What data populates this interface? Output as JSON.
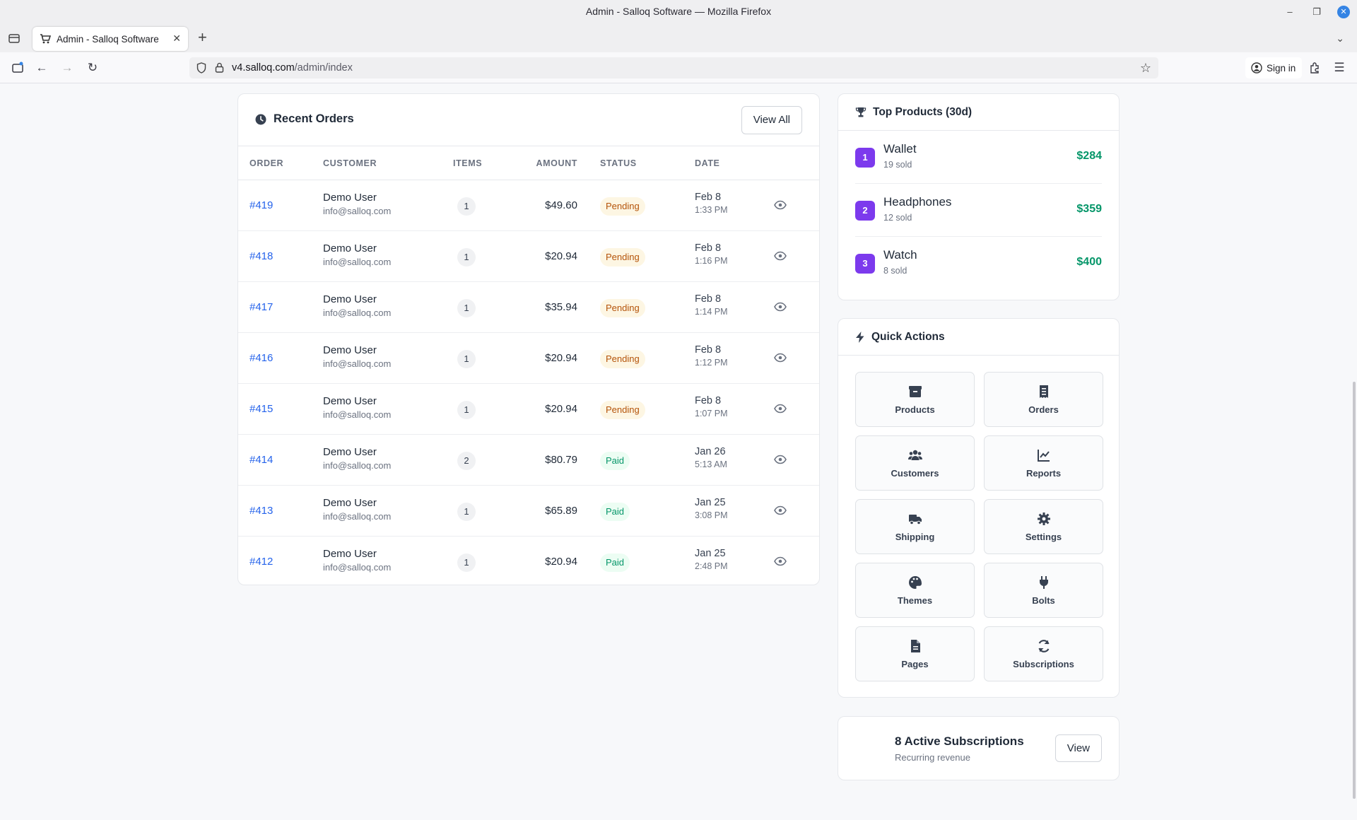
{
  "window": {
    "title": "Admin - Salloq Software — Mozilla Firefox"
  },
  "browser": {
    "tab_title": "Admin - Salloq Software",
    "url_domain": "v4.salloq.com",
    "url_path": "/admin/index",
    "sign_in": "Sign in"
  },
  "recent_orders": {
    "title": "Recent Orders",
    "view_all": "View All",
    "columns": {
      "order": "ORDER",
      "customer": "CUSTOMER",
      "items": "ITEMS",
      "amount": "AMOUNT",
      "status": "STATUS",
      "date": "DATE"
    },
    "rows": [
      {
        "id": "#419",
        "name": "Demo User",
        "email": "info@salloq.com",
        "items": "1",
        "amount": "$49.60",
        "status": "Pending",
        "date": "Feb 8",
        "time": "1:33 PM"
      },
      {
        "id": "#418",
        "name": "Demo User",
        "email": "info@salloq.com",
        "items": "1",
        "amount": "$20.94",
        "status": "Pending",
        "date": "Feb 8",
        "time": "1:16 PM"
      },
      {
        "id": "#417",
        "name": "Demo User",
        "email": "info@salloq.com",
        "items": "1",
        "amount": "$35.94",
        "status": "Pending",
        "date": "Feb 8",
        "time": "1:14 PM"
      },
      {
        "id": "#416",
        "name": "Demo User",
        "email": "info@salloq.com",
        "items": "1",
        "amount": "$20.94",
        "status": "Pending",
        "date": "Feb 8",
        "time": "1:12 PM"
      },
      {
        "id": "#415",
        "name": "Demo User",
        "email": "info@salloq.com",
        "items": "1",
        "amount": "$20.94",
        "status": "Pending",
        "date": "Feb 8",
        "time": "1:07 PM"
      },
      {
        "id": "#414",
        "name": "Demo User",
        "email": "info@salloq.com",
        "items": "2",
        "amount": "$80.79",
        "status": "Paid",
        "date": "Jan 26",
        "time": "5:13 AM"
      },
      {
        "id": "#413",
        "name": "Demo User",
        "email": "info@salloq.com",
        "items": "1",
        "amount": "$65.89",
        "status": "Paid",
        "date": "Jan 25",
        "time": "3:08 PM"
      },
      {
        "id": "#412",
        "name": "Demo User",
        "email": "info@salloq.com",
        "items": "1",
        "amount": "$20.94",
        "status": "Paid",
        "date": "Jan 25",
        "time": "2:48 PM"
      }
    ]
  },
  "top_products": {
    "title": "Top Products (30d)",
    "items": [
      {
        "rank": "1",
        "name": "Wallet",
        "sold": "19 sold",
        "revenue": "$284"
      },
      {
        "rank": "2",
        "name": "Headphones",
        "sold": "12 sold",
        "revenue": "$359"
      },
      {
        "rank": "3",
        "name": "Watch",
        "sold": "8 sold",
        "revenue": "$400"
      }
    ]
  },
  "quick_actions": {
    "title": "Quick Actions",
    "items": [
      {
        "label": "Products",
        "icon": "box-icon"
      },
      {
        "label": "Orders",
        "icon": "receipt-icon"
      },
      {
        "label": "Customers",
        "icon": "users-icon"
      },
      {
        "label": "Reports",
        "icon": "chart-line-icon"
      },
      {
        "label": "Shipping",
        "icon": "truck-icon"
      },
      {
        "label": "Settings",
        "icon": "gear-icon"
      },
      {
        "label": "Themes",
        "icon": "palette-icon"
      },
      {
        "label": "Bolts",
        "icon": "plug-icon"
      },
      {
        "label": "Pages",
        "icon": "file-icon"
      },
      {
        "label": "Subscriptions",
        "icon": "sync-icon"
      }
    ]
  },
  "subscriptions": {
    "title": "8 Active Subscriptions",
    "subtitle": "Recurring revenue",
    "view": "View"
  },
  "colors": {
    "link": "#2563eb",
    "accent_purple": "#7c3aed",
    "revenue_green": "#059669",
    "pending": "#b45309",
    "paid": "#059669"
  }
}
